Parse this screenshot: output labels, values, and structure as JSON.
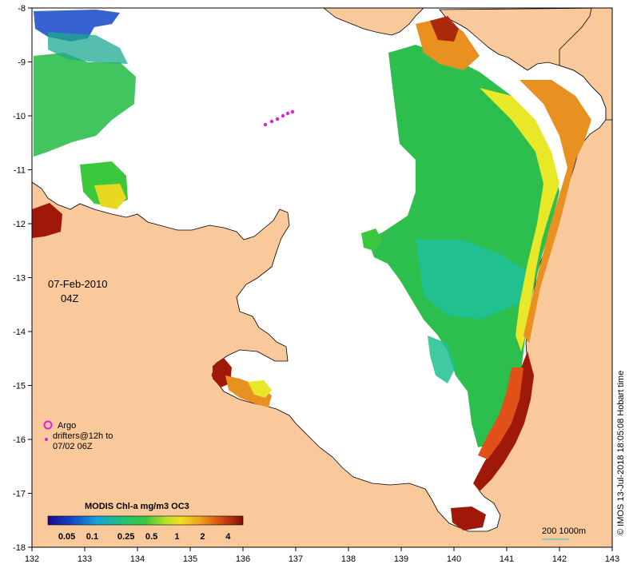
{
  "map": {
    "date": "07-Feb-2010",
    "time": "04Z",
    "lon_ticks": [
      "132",
      "133",
      "134",
      "135",
      "136",
      "137",
      "138",
      "139",
      "140",
      "141",
      "142",
      "143"
    ],
    "lat_ticks": [
      "-8",
      "-9",
      "-10",
      "-11",
      "-12",
      "-13",
      "-14",
      "-15",
      "-16",
      "-17",
      "-18"
    ],
    "lon_range": [
      132,
      143
    ],
    "lat_range": [
      -18,
      -8
    ],
    "legend": {
      "argo_label": "Argo",
      "drifters_line1": "drifters@12h to",
      "drifters_line2": "07/02 06Z"
    },
    "colorbar": {
      "title": "MODIS Chl-a mg/m3 OC3",
      "labels": [
        "0.05",
        "0.1",
        "0.25",
        "0.5",
        "1",
        "2",
        "4"
      ]
    },
    "depth_label": "200  1000m",
    "credit": "© IMOS 13-Jul-2018 18:05:08 Hobart time",
    "colors": {
      "land": "#f9c89b",
      "chl_blue": "#1446c8",
      "chl_green": "#2dbf4e",
      "chl_yellow": "#e8e828",
      "chl_orange": "#e89020",
      "chl_red": "#a01808",
      "drifter": "#e020e0",
      "depth_line": "#40d0c0"
    }
  }
}
